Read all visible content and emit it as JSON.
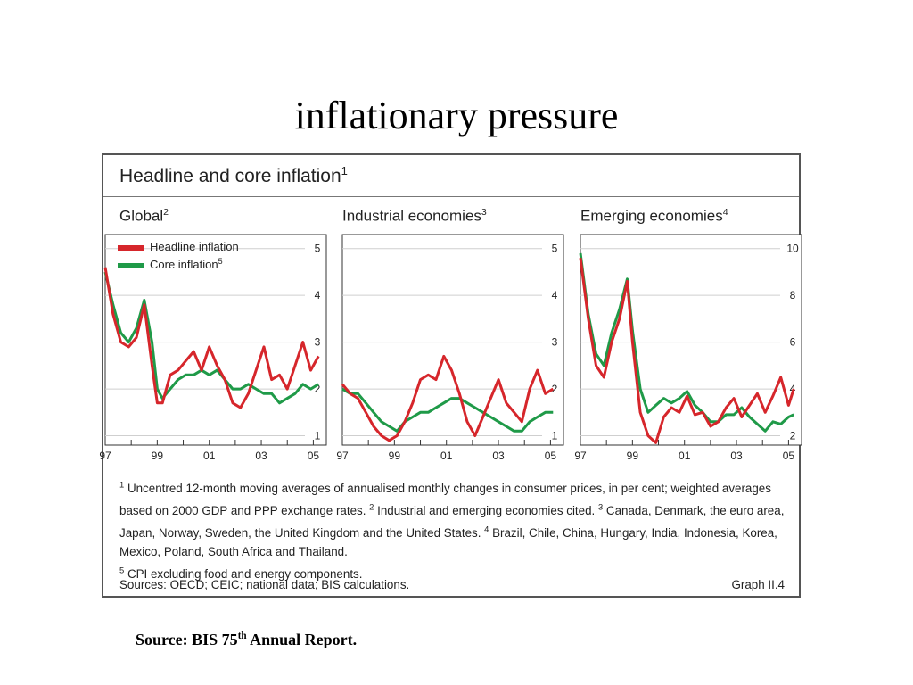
{
  "slide": {
    "title": "inflationary pressure",
    "source_prefix": "Source: BIS 75",
    "source_sup": "th",
    "source_suffix": " Annual Report."
  },
  "figure": {
    "title": "Headline and core inflation",
    "title_ref": "1",
    "notes": [
      {
        "ref": "1",
        "text": "Uncentred 12-month moving averages of annualised monthly changes in consumer prices, in per cent; weighted averages based on 2000 GDP and PPP exchange rates."
      },
      {
        "ref": "2",
        "text": "Industrial and emerging economies cited."
      },
      {
        "ref": "3",
        "text": "Canada, Denmark, the euro area, Japan, Norway, Sweden, the United Kingdom and the United States."
      },
      {
        "ref": "4",
        "text": "Brazil, Chile, China, Hungary, India, Indonesia, Korea, Mexico, Poland, South Africa and Thailand."
      },
      {
        "ref": "5",
        "text": "CPI excluding food and energy components."
      }
    ],
    "sources": "Sources: OECD; CEIC; national data; BIS calculations.",
    "graph_ref": "Graph II.4",
    "colors": {
      "headline": "#d6262b",
      "core": "#1f9a48",
      "grid": "#cfcfcf",
      "axis": "#333333"
    }
  },
  "chart_data": [
    {
      "type": "line",
      "title": "Global",
      "title_ref": "2",
      "xlabel": "",
      "ylabel": "",
      "x_ticks": [
        "97",
        "99",
        "01",
        "03",
        "05"
      ],
      "y_ticks": [
        1,
        2,
        3,
        4,
        5
      ],
      "xlim": [
        1997,
        2005.5
      ],
      "ylim": [
        0.8,
        5.3
      ],
      "grid": true,
      "legend": "top-left",
      "series": [
        {
          "name": "Headline inflation",
          "ref": "",
          "x": [
            1997.0,
            1997.3,
            1997.6,
            1997.9,
            1998.2,
            1998.5,
            1998.8,
            1999.0,
            1999.2,
            1999.5,
            1999.8,
            2000.1,
            2000.4,
            2000.7,
            2001.0,
            2001.3,
            2001.6,
            2001.9,
            2002.2,
            2002.5,
            2002.8,
            2003.1,
            2003.4,
            2003.7,
            2004.0,
            2004.3,
            2004.6,
            2004.9,
            2005.2
          ],
          "y": [
            4.6,
            3.6,
            3.0,
            2.9,
            3.1,
            3.8,
            2.5,
            1.7,
            1.7,
            2.3,
            2.4,
            2.6,
            2.8,
            2.4,
            2.9,
            2.5,
            2.2,
            1.7,
            1.6,
            1.9,
            2.4,
            2.9,
            2.2,
            2.3,
            2.0,
            2.5,
            3.0,
            2.4,
            2.7
          ]
        },
        {
          "name": "Core inflation",
          "ref": "5",
          "x": [
            1997.0,
            1997.3,
            1997.6,
            1997.9,
            1998.2,
            1998.5,
            1998.8,
            1999.0,
            1999.2,
            1999.5,
            1999.8,
            2000.1,
            2000.4,
            2000.7,
            2001.0,
            2001.3,
            2001.6,
            2001.9,
            2002.2,
            2002.5,
            2002.8,
            2003.1,
            2003.4,
            2003.7,
            2004.0,
            2004.3,
            2004.6,
            2004.9,
            2005.2
          ],
          "y": [
            4.5,
            3.8,
            3.2,
            3.0,
            3.3,
            3.9,
            3.0,
            2.0,
            1.8,
            2.0,
            2.2,
            2.3,
            2.3,
            2.4,
            2.3,
            2.4,
            2.2,
            2.0,
            2.0,
            2.1,
            2.0,
            1.9,
            1.9,
            1.7,
            1.8,
            1.9,
            2.1,
            2.0,
            2.1
          ]
        }
      ]
    },
    {
      "type": "line",
      "title": "Industrial economies",
      "title_ref": "3",
      "xlabel": "",
      "ylabel": "",
      "x_ticks": [
        "97",
        "99",
        "01",
        "03",
        "05"
      ],
      "y_ticks": [
        1,
        2,
        3,
        4,
        5
      ],
      "xlim": [
        1997,
        2005.5
      ],
      "ylim": [
        0.8,
        5.3
      ],
      "grid": true,
      "legend": "none",
      "series": [
        {
          "name": "Headline inflation",
          "ref": "",
          "x": [
            1997.0,
            1997.3,
            1997.6,
            1997.9,
            1998.2,
            1998.5,
            1998.8,
            1999.1,
            1999.4,
            1999.7,
            2000.0,
            2000.3,
            2000.6,
            2000.9,
            2001.2,
            2001.5,
            2001.8,
            2002.1,
            2002.4,
            2002.7,
            2003.0,
            2003.3,
            2003.6,
            2003.9,
            2004.2,
            2004.5,
            2004.8,
            2005.1
          ],
          "y": [
            2.1,
            1.9,
            1.8,
            1.5,
            1.2,
            1.0,
            0.9,
            1.0,
            1.3,
            1.7,
            2.2,
            2.3,
            2.2,
            2.7,
            2.4,
            1.9,
            1.3,
            1.0,
            1.4,
            1.8,
            2.2,
            1.7,
            1.5,
            1.3,
            2.0,
            2.4,
            1.9,
            2.0
          ]
        },
        {
          "name": "Core inflation",
          "ref": "5",
          "x": [
            1997.0,
            1997.3,
            1997.6,
            1997.9,
            1998.2,
            1998.5,
            1998.8,
            1999.1,
            1999.4,
            1999.7,
            2000.0,
            2000.3,
            2000.6,
            2000.9,
            2001.2,
            2001.5,
            2001.8,
            2002.1,
            2002.4,
            2002.7,
            2003.0,
            2003.3,
            2003.6,
            2003.9,
            2004.2,
            2004.5,
            2004.8,
            2005.1
          ],
          "y": [
            2.0,
            1.9,
            1.9,
            1.7,
            1.5,
            1.3,
            1.2,
            1.1,
            1.3,
            1.4,
            1.5,
            1.5,
            1.6,
            1.7,
            1.8,
            1.8,
            1.7,
            1.6,
            1.5,
            1.4,
            1.3,
            1.2,
            1.1,
            1.1,
            1.3,
            1.4,
            1.5,
            1.5
          ]
        }
      ]
    },
    {
      "type": "line",
      "title": "Emerging economies",
      "title_ref": "4",
      "xlabel": "",
      "ylabel": "",
      "x_ticks": [
        "97",
        "99",
        "01",
        "03",
        "05"
      ],
      "y_ticks": [
        2,
        4,
        6,
        8,
        10
      ],
      "xlim": [
        1997,
        2005.5
      ],
      "ylim": [
        1.6,
        10.6
      ],
      "grid": true,
      "legend": "none",
      "series": [
        {
          "name": "Headline inflation",
          "ref": "",
          "x": [
            1997.0,
            1997.3,
            1997.6,
            1997.9,
            1998.2,
            1998.5,
            1998.8,
            1999.0,
            1999.3,
            1999.6,
            1999.9,
            2000.2,
            2000.5,
            2000.8,
            2001.1,
            2001.4,
            2001.7,
            2002.0,
            2002.3,
            2002.6,
            2002.9,
            2003.2,
            2003.5,
            2003.8,
            2004.1,
            2004.4,
            2004.7,
            2005.0,
            2005.2
          ],
          "y": [
            9.6,
            7.0,
            5.0,
            4.5,
            6.0,
            7.0,
            8.6,
            6.0,
            3.0,
            2.0,
            1.7,
            2.8,
            3.2,
            3.0,
            3.7,
            2.9,
            3.0,
            2.4,
            2.6,
            3.2,
            3.6,
            2.8,
            3.3,
            3.8,
            3.0,
            3.7,
            4.5,
            3.3,
            4.0
          ]
        },
        {
          "name": "Core inflation",
          "ref": "5",
          "x": [
            1997.0,
            1997.3,
            1997.6,
            1997.9,
            1998.2,
            1998.5,
            1998.8,
            1999.0,
            1999.3,
            1999.6,
            1999.9,
            2000.2,
            2000.5,
            2000.8,
            2001.1,
            2001.4,
            2001.7,
            2002.0,
            2002.3,
            2002.6,
            2002.9,
            2003.2,
            2003.5,
            2003.8,
            2004.1,
            2004.4,
            2004.7,
            2005.0,
            2005.2
          ],
          "y": [
            9.8,
            7.2,
            5.5,
            5.0,
            6.4,
            7.4,
            8.7,
            6.5,
            4.0,
            3.0,
            3.3,
            3.6,
            3.4,
            3.6,
            3.9,
            3.3,
            3.0,
            2.6,
            2.6,
            2.9,
            2.9,
            3.2,
            2.8,
            2.5,
            2.2,
            2.6,
            2.5,
            2.8,
            2.9
          ]
        }
      ]
    }
  ]
}
